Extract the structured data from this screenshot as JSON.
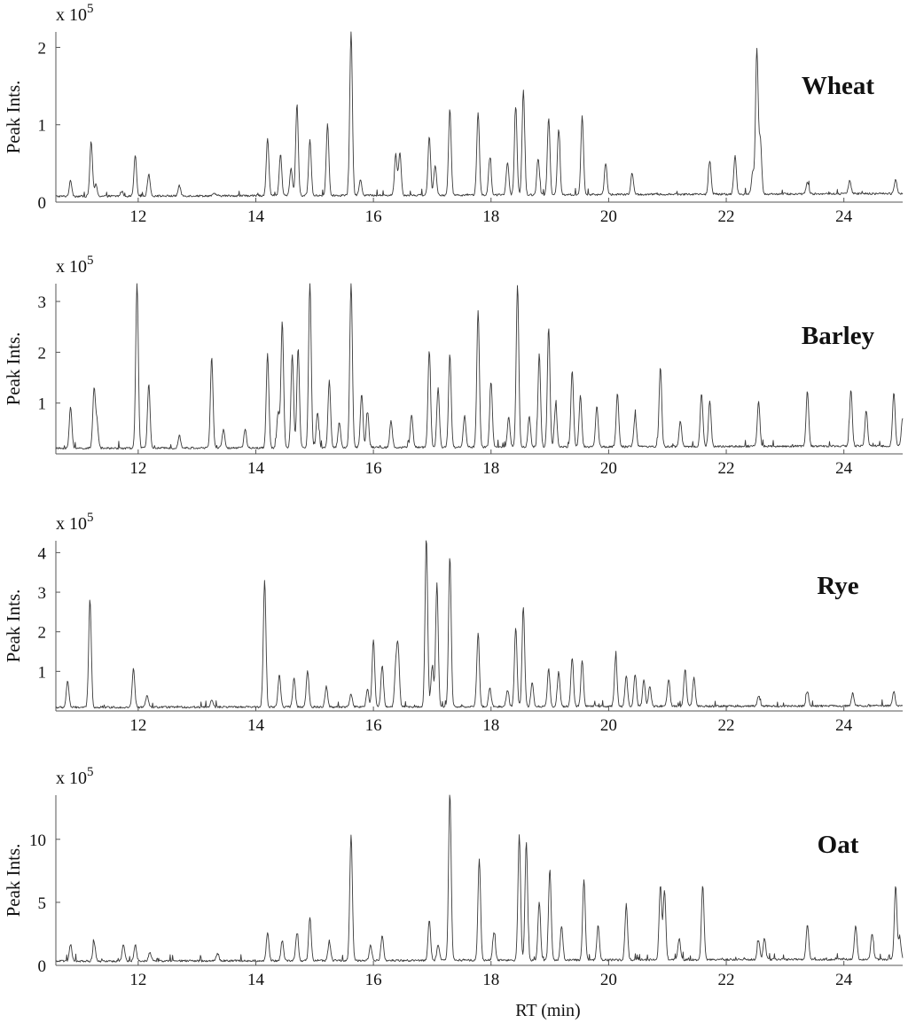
{
  "x_axis_label": "RT (min)",
  "chart_data": [
    {
      "type": "line",
      "name": "Wheat",
      "label": "Wheat",
      "ylabel": "Peak Ints.",
      "scale_label": "x 10",
      "scale_exponent": "5",
      "xlim": [
        10.6,
        25.0
      ],
      "ylim": [
        0,
        2.2
      ],
      "yticks": [
        0,
        1,
        2
      ],
      "xticks": [
        12,
        14,
        16,
        18,
        20,
        22,
        24
      ],
      "baseline": 0.07,
      "peaks": [
        [
          10.85,
          0.27
        ],
        [
          11.2,
          0.78
        ],
        [
          11.28,
          0.22
        ],
        [
          11.72,
          0.13
        ],
        [
          11.95,
          0.6
        ],
        [
          12.18,
          0.36
        ],
        [
          12.7,
          0.2
        ],
        [
          13.3,
          0.1
        ],
        [
          14.2,
          0.81
        ],
        [
          14.42,
          0.6
        ],
        [
          14.6,
          0.42
        ],
        [
          14.7,
          1.25
        ],
        [
          14.92,
          0.79
        ],
        [
          15.22,
          1.0
        ],
        [
          15.62,
          2.2
        ],
        [
          15.78,
          0.28
        ],
        [
          16.38,
          0.6
        ],
        [
          16.45,
          0.62
        ],
        [
          16.95,
          0.82
        ],
        [
          17.05,
          0.45
        ],
        [
          17.3,
          1.18
        ],
        [
          17.78,
          1.13
        ],
        [
          17.98,
          0.55
        ],
        [
          18.28,
          0.5
        ],
        [
          18.42,
          1.2
        ],
        [
          18.55,
          1.42
        ],
        [
          18.8,
          0.54
        ],
        [
          18.98,
          1.07
        ],
        [
          19.15,
          0.92
        ],
        [
          19.55,
          1.08
        ],
        [
          19.95,
          0.48
        ],
        [
          20.4,
          0.35
        ],
        [
          21.72,
          0.5
        ],
        [
          22.15,
          0.56
        ],
        [
          22.45,
          0.35
        ],
        [
          22.52,
          1.95
        ],
        [
          22.58,
          0.76
        ],
        [
          23.38,
          0.23
        ],
        [
          24.1,
          0.24
        ],
        [
          24.88,
          0.26
        ]
      ]
    },
    {
      "type": "line",
      "name": "Barley",
      "label": "Barley",
      "ylabel": "Peak Ints.",
      "scale_label": "x 10",
      "scale_exponent": "5",
      "xlim": [
        10.6,
        25.0
      ],
      "ylim": [
        0,
        3.35
      ],
      "yticks": [
        1,
        2,
        3
      ],
      "xticks": [
        12,
        14,
        16,
        18,
        20,
        22,
        24
      ],
      "baseline": 0.1,
      "peaks": [
        [
          10.85,
          0.92
        ],
        [
          11.25,
          1.28
        ],
        [
          11.3,
          0.6
        ],
        [
          11.98,
          3.35
        ],
        [
          12.18,
          1.36
        ],
        [
          12.7,
          0.35
        ],
        [
          13.25,
          1.88
        ],
        [
          13.45,
          0.45
        ],
        [
          13.82,
          0.45
        ],
        [
          14.2,
          1.95
        ],
        [
          14.38,
          0.8
        ],
        [
          14.45,
          2.58
        ],
        [
          14.62,
          1.95
        ],
        [
          14.72,
          2.05
        ],
        [
          14.92,
          3.35
        ],
        [
          15.05,
          0.8
        ],
        [
          15.25,
          1.42
        ],
        [
          15.42,
          0.6
        ],
        [
          15.62,
          3.35
        ],
        [
          15.8,
          1.15
        ],
        [
          15.9,
          0.8
        ],
        [
          16.3,
          0.62
        ],
        [
          16.65,
          0.75
        ],
        [
          16.95,
          2.0
        ],
        [
          17.1,
          1.27
        ],
        [
          17.3,
          1.93
        ],
        [
          17.55,
          0.72
        ],
        [
          17.78,
          2.78
        ],
        [
          18.0,
          1.38
        ],
        [
          18.3,
          0.7
        ],
        [
          18.45,
          3.28
        ],
        [
          18.65,
          0.7
        ],
        [
          18.82,
          1.92
        ],
        [
          18.98,
          2.45
        ],
        [
          19.1,
          0.95
        ],
        [
          19.38,
          1.6
        ],
        [
          19.52,
          1.1
        ],
        [
          19.8,
          0.9
        ],
        [
          20.15,
          1.15
        ],
        [
          20.45,
          0.72
        ],
        [
          20.88,
          1.67
        ],
        [
          21.22,
          0.6
        ],
        [
          21.58,
          1.15
        ],
        [
          21.72,
          1.0
        ],
        [
          22.55,
          0.98
        ],
        [
          23.38,
          1.18
        ],
        [
          24.12,
          1.2
        ],
        [
          24.38,
          0.8
        ],
        [
          24.85,
          1.15
        ],
        [
          25.0,
          0.65
        ]
      ]
    },
    {
      "type": "line",
      "name": "Rye",
      "label": "Rye",
      "ylabel": "Peak Ints.",
      "scale_label": "x 10",
      "scale_exponent": "5",
      "xlim": [
        10.6,
        25.0
      ],
      "ylim": [
        0,
        4.3
      ],
      "yticks": [
        1,
        2,
        3,
        4
      ],
      "xticks": [
        12,
        14,
        16,
        18,
        20,
        22,
        24
      ],
      "baseline": 0.08,
      "peaks": [
        [
          10.8,
          0.75
        ],
        [
          11.18,
          2.8
        ],
        [
          11.92,
          1.05
        ],
        [
          12.15,
          0.38
        ],
        [
          13.25,
          0.25
        ],
        [
          14.15,
          3.3
        ],
        [
          14.4,
          0.9
        ],
        [
          14.65,
          0.8
        ],
        [
          14.88,
          1.0
        ],
        [
          15.2,
          0.6
        ],
        [
          15.62,
          0.4
        ],
        [
          15.9,
          0.52
        ],
        [
          16.0,
          1.78
        ],
        [
          16.15,
          1.13
        ],
        [
          16.38,
          1.0
        ],
        [
          16.42,
          1.52
        ],
        [
          16.9,
          4.3
        ],
        [
          17.0,
          1.1
        ],
        [
          17.08,
          3.2
        ],
        [
          17.3,
          3.85
        ],
        [
          17.78,
          1.92
        ],
        [
          17.98,
          0.55
        ],
        [
          18.28,
          0.5
        ],
        [
          18.42,
          2.08
        ],
        [
          18.55,
          2.6
        ],
        [
          18.7,
          0.7
        ],
        [
          18.98,
          1.02
        ],
        [
          19.15,
          0.95
        ],
        [
          19.38,
          1.32
        ],
        [
          19.55,
          1.25
        ],
        [
          20.12,
          1.35
        ],
        [
          20.3,
          0.85
        ],
        [
          20.45,
          0.9
        ],
        [
          20.6,
          0.75
        ],
        [
          20.7,
          0.6
        ],
        [
          21.02,
          0.77
        ],
        [
          21.3,
          1.02
        ],
        [
          21.45,
          0.8
        ],
        [
          22.55,
          0.35
        ],
        [
          23.38,
          0.45
        ],
        [
          24.15,
          0.4
        ],
        [
          24.85,
          0.45
        ]
      ]
    },
    {
      "type": "line",
      "name": "Oat",
      "label": "Oat",
      "ylabel": "Peak Ints.",
      "scale_label": "x 10",
      "scale_exponent": "5",
      "xlim": [
        10.6,
        25.0
      ],
      "ylim": [
        0,
        13.5
      ],
      "yticks": [
        0,
        5,
        10
      ],
      "xticks": [
        12,
        14,
        16,
        18,
        20,
        22,
        24
      ],
      "baseline": 0.3,
      "peaks": [
        [
          10.85,
          1.6
        ],
        [
          11.25,
          1.8
        ],
        [
          11.75,
          1.6
        ],
        [
          11.95,
          1.6
        ],
        [
          12.2,
          1.0
        ],
        [
          13.35,
          0.9
        ],
        [
          14.2,
          2.5
        ],
        [
          14.45,
          1.9
        ],
        [
          14.7,
          2.5
        ],
        [
          14.92,
          3.7
        ],
        [
          15.25,
          1.8
        ],
        [
          15.62,
          10.3
        ],
        [
          15.95,
          1.5
        ],
        [
          16.15,
          2.3
        ],
        [
          16.95,
          3.5
        ],
        [
          17.1,
          1.5
        ],
        [
          17.3,
          13.5
        ],
        [
          17.8,
          8.4
        ],
        [
          18.05,
          2.5
        ],
        [
          18.48,
          10.3
        ],
        [
          18.6,
          9.6
        ],
        [
          18.82,
          4.9
        ],
        [
          19.0,
          7.5
        ],
        [
          19.2,
          3.0
        ],
        [
          19.58,
          6.7
        ],
        [
          19.82,
          3.0
        ],
        [
          20.3,
          4.6
        ],
        [
          20.88,
          6.2
        ],
        [
          20.95,
          5.8
        ],
        [
          21.2,
          2.0
        ],
        [
          21.6,
          6.2
        ],
        [
          22.55,
          1.8
        ],
        [
          22.65,
          2.0
        ],
        [
          23.38,
          3.1
        ],
        [
          24.2,
          3.0
        ],
        [
          24.48,
          2.4
        ],
        [
          24.88,
          6.2
        ],
        [
          24.95,
          2.0
        ]
      ]
    }
  ]
}
